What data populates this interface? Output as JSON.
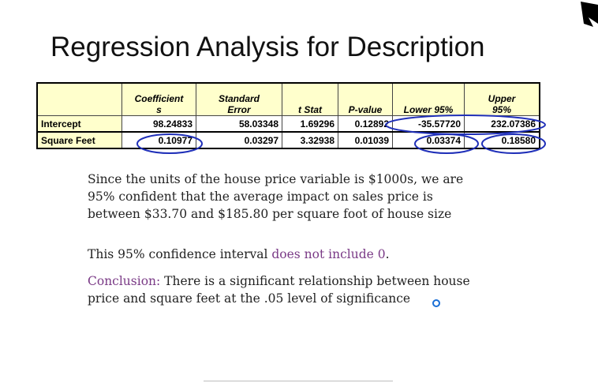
{
  "title": "Regression Analysis for Description",
  "table": {
    "headers": [
      "",
      "Coefficients",
      "Standard Error",
      "t Stat",
      "P-value",
      "Lower 95%",
      "Upper 95%"
    ],
    "header_lines": {
      "coef_1": "Coefficient",
      "coef_2": "s",
      "se_1": "Standard",
      "se_2": "Error",
      "tstat": "t Stat",
      "pvalue": "P-value",
      "lower": "Lower 95%",
      "upper_1": "Upper",
      "upper_2": "95%"
    },
    "rows": [
      {
        "label": "Intercept",
        "coefficient": "98.24833",
        "std_error": "58.03348",
        "t_stat": "1.69296",
        "p_value": "0.12892",
        "lower_95": "-35.57720",
        "upper_95": "232.07386"
      },
      {
        "label": "Square Feet",
        "coefficient": "0.10977",
        "std_error": "0.03297",
        "t_stat": "3.32938",
        "p_value": "0.01039",
        "lower_95": "0.03374",
        "upper_95": "0.18580"
      }
    ]
  },
  "paragraph1": {
    "line1": "Since the units of the house price variable is $1000s, we are",
    "line2": "95% confident that the average impact on sales price is",
    "line3": "between $33.70 and $185.80 per square foot of house size"
  },
  "paragraph2": {
    "prefix": "This 95% confidence interval ",
    "highlight": "does not include 0",
    "suffix": "."
  },
  "paragraph3": {
    "label": "Conclusion:",
    "line1_rest": " There is a significant relationship between house",
    "line2": "price and square feet at the .05 level of significance"
  },
  "colors": {
    "header_fill": "#ffffcc",
    "annotation_ink": "#1f2fb8",
    "highlight_text": "#7a3a86"
  }
}
